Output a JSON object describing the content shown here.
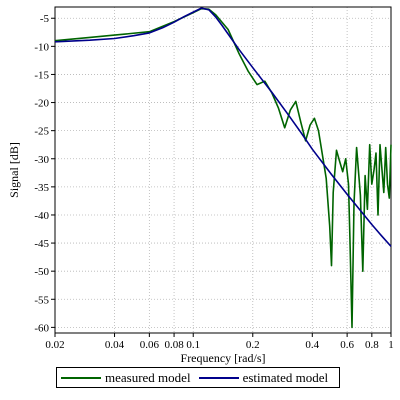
{
  "chart_data": {
    "type": "line",
    "xlabel": "Frequency [rad/s]",
    "ylabel": "Signal [dB]",
    "xscale": "log",
    "xlim": [
      0.02,
      1.0
    ],
    "ylim": [
      -61,
      -3
    ],
    "grid": true,
    "legend_position": "bottom",
    "x_ticks": [
      {
        "value": 0.02,
        "label": "0.02"
      },
      {
        "value": 0.04,
        "label": "0.04"
      },
      {
        "value": 0.06,
        "label": "0.06"
      },
      {
        "value": 0.08,
        "label": "0.08"
      },
      {
        "value": 0.1,
        "label": "0.1"
      },
      {
        "value": 0.2,
        "label": "0.2"
      },
      {
        "value": 0.4,
        "label": "0.4"
      },
      {
        "value": 0.6,
        "label": "0.6"
      },
      {
        "value": 0.8,
        "label": "0.8"
      },
      {
        "value": 1.0,
        "label": "1"
      }
    ],
    "y_ticks": [
      {
        "value": -5,
        "label": "-5"
      },
      {
        "value": -10,
        "label": "-10"
      },
      {
        "value": -15,
        "label": "-15"
      },
      {
        "value": -20,
        "label": "-20"
      },
      {
        "value": -25,
        "label": "-25"
      },
      {
        "value": -30,
        "label": "-30"
      },
      {
        "value": -35,
        "label": "-35"
      },
      {
        "value": -40,
        "label": "-40"
      },
      {
        "value": -45,
        "label": "-45"
      },
      {
        "value": -50,
        "label": "-50"
      },
      {
        "value": -55,
        "label": "-55"
      },
      {
        "value": -60,
        "label": "-60"
      }
    ],
    "series": [
      {
        "name": "measured model",
        "color": "#006400",
        "points": [
          [
            0.02,
            -9.0
          ],
          [
            0.03,
            -8.4
          ],
          [
            0.04,
            -8.0
          ],
          [
            0.06,
            -7.4
          ],
          [
            0.08,
            -5.6
          ],
          [
            0.1,
            -4.0
          ],
          [
            0.11,
            -3.3
          ],
          [
            0.12,
            -3.4
          ],
          [
            0.13,
            -4.4
          ],
          [
            0.15,
            -7.0
          ],
          [
            0.17,
            -11.2
          ],
          [
            0.19,
            -14.5
          ],
          [
            0.21,
            -16.8
          ],
          [
            0.23,
            -16.2
          ],
          [
            0.25,
            -18.3
          ],
          [
            0.27,
            -21.0
          ],
          [
            0.29,
            -24.5
          ],
          [
            0.31,
            -21.3
          ],
          [
            0.33,
            -19.8
          ],
          [
            0.35,
            -23.5
          ],
          [
            0.37,
            -26.8
          ],
          [
            0.39,
            -24.0
          ],
          [
            0.41,
            -22.8
          ],
          [
            0.43,
            -25.0
          ],
          [
            0.45,
            -29.3
          ],
          [
            0.47,
            -33.5
          ],
          [
            0.49,
            -42.0
          ],
          [
            0.5,
            -49.0
          ],
          [
            0.51,
            -36.0
          ],
          [
            0.53,
            -28.5
          ],
          [
            0.55,
            -30.5
          ],
          [
            0.57,
            -32.3
          ],
          [
            0.59,
            -30.0
          ],
          [
            0.61,
            -34.5
          ],
          [
            0.62,
            -44.0
          ],
          [
            0.635,
            -60.0
          ],
          [
            0.65,
            -38.0
          ],
          [
            0.67,
            -28.0
          ],
          [
            0.7,
            -36.5
          ],
          [
            0.72,
            -50.0
          ],
          [
            0.74,
            -33.0
          ],
          [
            0.76,
            -39.0
          ],
          [
            0.78,
            -27.5
          ],
          [
            0.8,
            -34.5
          ],
          [
            0.82,
            -32.0
          ],
          [
            0.84,
            -29.0
          ],
          [
            0.86,
            -40.0
          ],
          [
            0.88,
            -27.5
          ],
          [
            0.9,
            -32.0
          ],
          [
            0.92,
            -36.0
          ],
          [
            0.94,
            -28.0
          ],
          [
            0.96,
            -34.5
          ],
          [
            0.98,
            -37.0
          ],
          [
            1.0,
            -27.5
          ]
        ]
      },
      {
        "name": "estimated model",
        "color": "#00008B",
        "points": [
          [
            0.02,
            -9.2
          ],
          [
            0.03,
            -8.9
          ],
          [
            0.04,
            -8.6
          ],
          [
            0.05,
            -8.1
          ],
          [
            0.06,
            -7.6
          ],
          [
            0.07,
            -6.7
          ],
          [
            0.08,
            -5.7
          ],
          [
            0.09,
            -4.7
          ],
          [
            0.1,
            -3.9
          ],
          [
            0.11,
            -3.2
          ],
          [
            0.12,
            -3.5
          ],
          [
            0.13,
            -4.8
          ],
          [
            0.14,
            -6.3
          ],
          [
            0.15,
            -7.8
          ],
          [
            0.17,
            -10.5
          ],
          [
            0.2,
            -13.8
          ],
          [
            0.25,
            -18.2
          ],
          [
            0.3,
            -22.0
          ],
          [
            0.35,
            -25.3
          ],
          [
            0.4,
            -28.3
          ],
          [
            0.5,
            -32.8
          ],
          [
            0.6,
            -36.3
          ],
          [
            0.7,
            -39.2
          ],
          [
            0.8,
            -41.7
          ],
          [
            0.9,
            -43.8
          ],
          [
            1.0,
            -45.6
          ]
        ]
      }
    ]
  }
}
